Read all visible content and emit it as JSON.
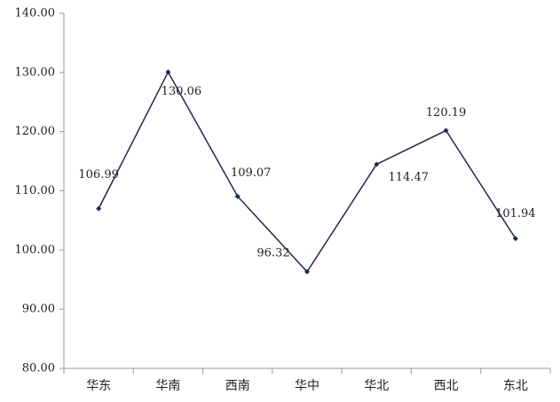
{
  "chart_data": {
    "type": "line",
    "categories": [
      "华东",
      "华南",
      "西南",
      "华中",
      "华北",
      "西北",
      "东北"
    ],
    "series": [
      {
        "name": "value",
        "color": "#1f2a4f",
        "values": [
          106.99,
          130.06,
          109.07,
          96.32,
          114.47,
          120.19,
          101.94
        ]
      }
    ],
    "ylim": [
      80,
      140
    ],
    "yticks": [
      {
        "value": 80,
        "label": "80.00"
      },
      {
        "value": 90,
        "label": "90.00"
      },
      {
        "value": 100,
        "label": "100.00"
      },
      {
        "value": 110,
        "label": "110.00"
      },
      {
        "value": 120,
        "label": "120.00"
      },
      {
        "value": 130,
        "label": "130.00"
      },
      {
        "value": 140,
        "label": "140.00"
      }
    ],
    "grid": false
  }
}
